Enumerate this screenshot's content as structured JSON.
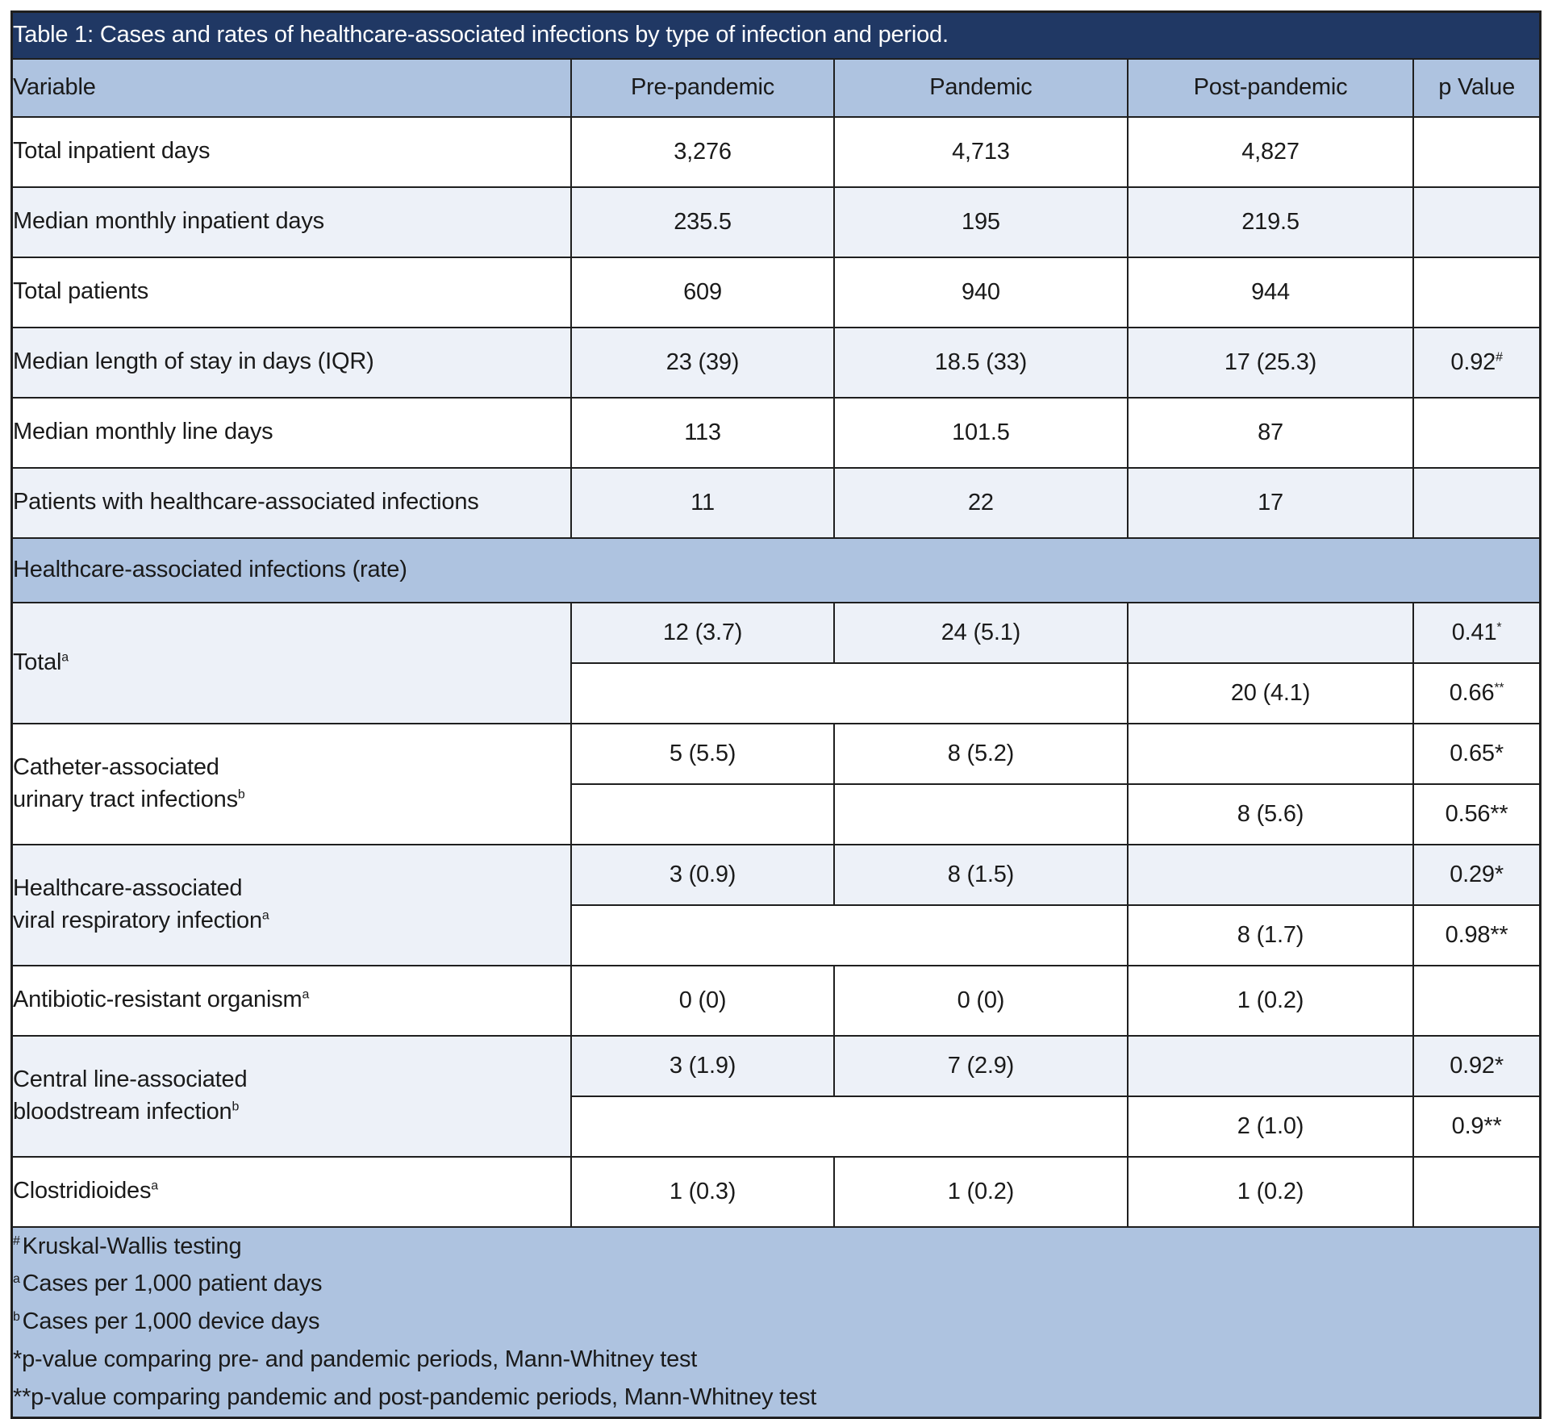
{
  "title": "Table 1: Cases and rates of healthcare-associated infections by type of infection and period.",
  "header": {
    "variable": "Variable",
    "pre": "Pre-pandemic",
    "pandemic": "Pandemic",
    "post": "Post-pandemic",
    "p": "p Value"
  },
  "rows": {
    "inpatient_days": {
      "label": "Total inpatient days",
      "pre": "3,276",
      "pandemic": "4,713",
      "post": "4,827",
      "p": ""
    },
    "median_monthly_inpatient": {
      "label": "Median monthly inpatient days",
      "pre": "235.5",
      "pandemic": "195",
      "post": "219.5",
      "p": ""
    },
    "total_patients": {
      "label": "Total patients",
      "pre": "609",
      "pandemic": "940",
      "post": "944",
      "p": ""
    },
    "median_los": {
      "label": "Median length of stay in days (IQR)",
      "pre": "23 (39)",
      "pandemic": "18.5 (33)",
      "post": "17 (25.3)",
      "p": "0.92",
      "p_sup": "#"
    },
    "median_line_days": {
      "label": "Median monthly line days",
      "pre": "113",
      "pandemic": "101.5",
      "post": "87",
      "p": ""
    },
    "patients_hai": {
      "label": "Patients with healthcare-associated infections",
      "pre": "11",
      "pandemic": "22",
      "post": "17",
      "p": ""
    }
  },
  "section": {
    "label": "Healthcare-associated infections (rate)"
  },
  "blocks": {
    "total": {
      "label": "Total",
      "label_sup": "a",
      "pre": "12 (3.7)",
      "pandemic": "24 (5.1)",
      "p1": "0.41",
      "p1_sup": "*",
      "post": "20 (4.1)",
      "p2": "0.66",
      "p2_sup": "**"
    },
    "cauti": {
      "label_line1": "Catheter-associated",
      "label_line2": "urinary tract infections",
      "label_sup": "b",
      "pre": "5 (5.5)",
      "pandemic": "8 (5.2)",
      "p1": "0.65*",
      "post": "8 (5.6)",
      "p2": "0.56**"
    },
    "viral": {
      "label_line1": "Healthcare-associated",
      "label_line2": "viral respiratory infection",
      "label_sup": "a",
      "pre": "3 (0.9)",
      "pandemic": "8 (1.5)",
      "p1": "0.29*",
      "post": "8 (1.7)",
      "p2": "0.98**"
    },
    "clabsi": {
      "label_line1": "Central line-associated",
      "label_line2": "bloodstream infection",
      "label_sup": "b",
      "pre": "3 (1.9)",
      "pandemic": "7 (2.9)",
      "p1": "0.92*",
      "post": "2 (1.0)",
      "p2": "0.9**"
    }
  },
  "single_rows": {
    "aro": {
      "label": "Antibiotic-resistant organism",
      "label_sup": "a",
      "pre": "0 (0)",
      "pandemic": "0 (0)",
      "post": "1 (0.2)",
      "p": ""
    },
    "cdiff": {
      "label": "Clostridioides",
      "label_sup": "a",
      "pre": "1 (0.3)",
      "pandemic": "1 (0.2)",
      "post": "1 (0.2)",
      "p": ""
    }
  },
  "footnotes": [
    {
      "sup": "#",
      "text": "Kruskal-Wallis testing"
    },
    {
      "sup": "a",
      "text": "Cases per 1,000 patient days"
    },
    {
      "sup": "b",
      "text": "Cases per 1,000 device days"
    },
    {
      "sup": "",
      "text": "*p-value comparing pre- and pandemic periods, Mann-Whitney test"
    },
    {
      "sup": "",
      "text": "**p-value comparing pandemic and post-pandemic periods, Mann-Whitney test"
    }
  ],
  "colors": {
    "title_bg": "#203864",
    "band_bg": "#aec3e0",
    "alt_row_bg": "#edf1f8",
    "border": "#1f1f1f",
    "title_text": "#ffffff",
    "body_text": "#1a1a1a"
  }
}
